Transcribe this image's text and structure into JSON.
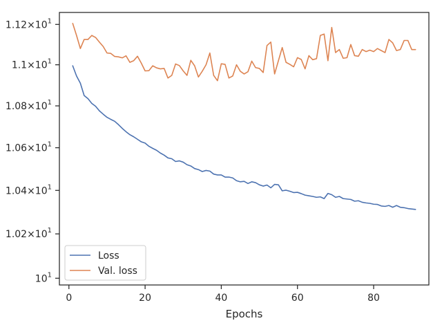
{
  "chart_data": {
    "type": "line",
    "title": "",
    "xlabel": "Epochs",
    "ylabel": "",
    "yscale": "log",
    "grid": false,
    "legend_position": "lower-left",
    "xlim": [
      -2.5,
      94.5
    ],
    "ylim": [
      9.97,
      11.26
    ],
    "x_ticks": [
      0,
      20,
      40,
      60,
      80
    ],
    "x_tick_labels": [
      "0",
      "20",
      "40",
      "60",
      "80"
    ],
    "y_ticks": [
      10.0,
      10.2,
      10.4,
      10.6,
      10.8,
      11.0,
      11.2
    ],
    "y_tick_labels": [
      {
        "mant": "10",
        "exp": "1"
      },
      {
        "mant": "1.02×10",
        "exp": "1"
      },
      {
        "mant": "1.04×10",
        "exp": "1"
      },
      {
        "mant": "1.06×10",
        "exp": "1"
      },
      {
        "mant": "1.08×10",
        "exp": "1"
      },
      {
        "mant": "1.1×10",
        "exp": "1"
      },
      {
        "mant": "1.12×10",
        "exp": "1"
      }
    ],
    "x": [
      1,
      2,
      3,
      4,
      5,
      6,
      7,
      8,
      9,
      10,
      11,
      12,
      13,
      14,
      15,
      16,
      17,
      18,
      19,
      20,
      21,
      22,
      23,
      24,
      25,
      26,
      27,
      28,
      29,
      30,
      31,
      32,
      33,
      34,
      35,
      36,
      37,
      38,
      39,
      40,
      41,
      42,
      43,
      44,
      45,
      46,
      47,
      48,
      49,
      50,
      51,
      52,
      53,
      54,
      55,
      56,
      57,
      58,
      59,
      60,
      61,
      62,
      63,
      64,
      65,
      66,
      67,
      68,
      69,
      70,
      71,
      72,
      73,
      74,
      75,
      76,
      77,
      78,
      79,
      80,
      81,
      82,
      83,
      84,
      85,
      86,
      87,
      88,
      89,
      90,
      91
    ],
    "series": [
      {
        "name": "Loss",
        "color": "#4c72b0",
        "values": [
          10.995,
          10.945,
          10.91,
          10.85,
          10.835,
          10.812,
          10.798,
          10.776,
          10.76,
          10.745,
          10.735,
          10.726,
          10.71,
          10.692,
          10.676,
          10.662,
          10.652,
          10.64,
          10.628,
          10.622,
          10.607,
          10.597,
          10.588,
          10.575,
          10.565,
          10.552,
          10.548,
          10.535,
          10.538,
          10.532,
          10.52,
          10.514,
          10.502,
          10.497,
          10.488,
          10.493,
          10.49,
          10.476,
          10.472,
          10.472,
          10.462,
          10.462,
          10.458,
          10.445,
          10.44,
          10.442,
          10.432,
          10.44,
          10.436,
          10.426,
          10.42,
          10.425,
          10.412,
          10.428,
          10.426,
          10.398,
          10.401,
          10.396,
          10.39,
          10.391,
          10.385,
          10.378,
          10.375,
          10.372,
          10.368,
          10.37,
          10.362,
          10.386,
          10.38,
          10.368,
          10.372,
          10.362,
          10.36,
          10.358,
          10.35,
          10.352,
          10.345,
          10.342,
          10.34,
          10.336,
          10.335,
          10.328,
          10.326,
          10.33,
          10.322,
          10.33,
          10.322,
          10.32,
          10.316,
          10.314,
          10.312
        ]
      },
      {
        "name": "Val. loss",
        "color": "#dd8452",
        "values": [
          11.205,
          11.145,
          11.08,
          11.125,
          11.125,
          11.145,
          11.135,
          11.112,
          11.09,
          11.058,
          11.056,
          11.041,
          11.039,
          11.034,
          11.044,
          11.012,
          11.02,
          11.042,
          11.008,
          10.97,
          10.971,
          10.995,
          10.985,
          10.98,
          10.982,
          10.935,
          10.948,
          11.004,
          10.996,
          10.97,
          10.948,
          11.022,
          10.995,
          10.94,
          10.968,
          11.0,
          11.058,
          10.948,
          10.922,
          11.005,
          11.002,
          10.935,
          10.945,
          11.0,
          10.968,
          10.955,
          10.966,
          11.018,
          10.986,
          10.982,
          10.962,
          11.095,
          11.112,
          10.955,
          11.02,
          11.085,
          11.012,
          11.002,
          10.99,
          11.035,
          11.026,
          10.98,
          11.045,
          11.025,
          11.03,
          11.145,
          11.152,
          11.02,
          11.185,
          11.06,
          11.075,
          11.032,
          11.035,
          11.1,
          11.045,
          11.042,
          11.075,
          11.065,
          11.072,
          11.065,
          11.08,
          11.07,
          11.06,
          11.125,
          11.108,
          11.07,
          11.075,
          11.12,
          11.12,
          11.075,
          11.075
        ]
      }
    ]
  }
}
